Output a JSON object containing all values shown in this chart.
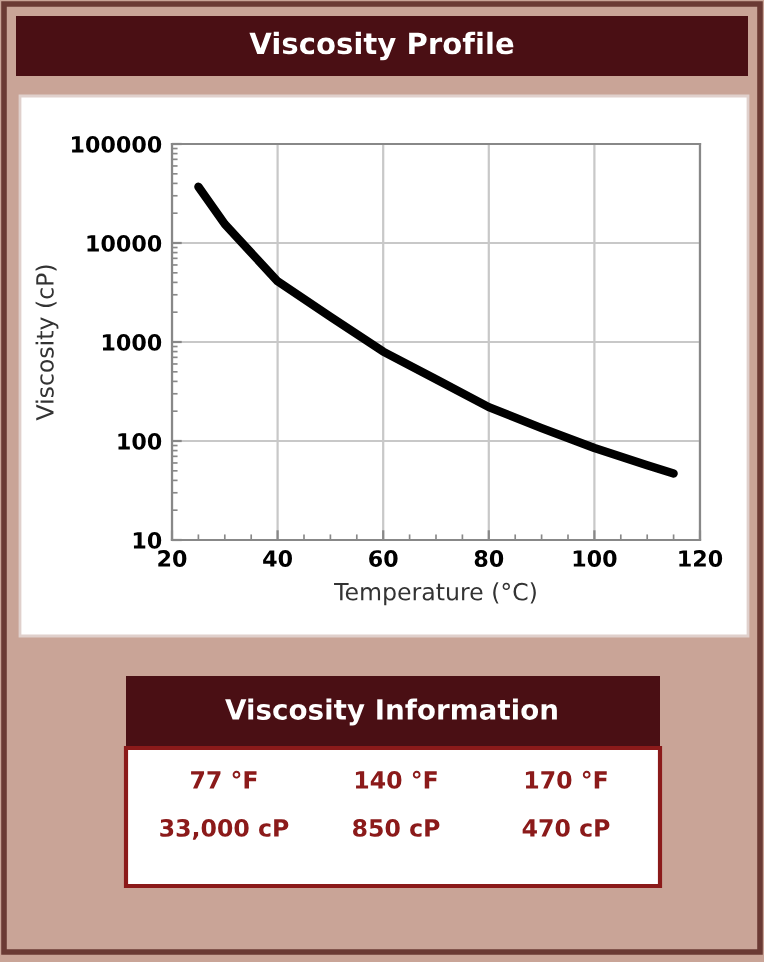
{
  "chart_data": [
    {
      "type": "line",
      "title": "Viscosity Profile",
      "xlabel": "Temperature (°C)",
      "ylabel": "Viscosity (cP)",
      "x": [
        25,
        30,
        40,
        50,
        60,
        70,
        80,
        90,
        100,
        110,
        115
      ],
      "series": [
        {
          "color": "#000000",
          "values": [
            37000,
            15500,
            4100,
            1800,
            800,
            420,
            220,
            135,
            85,
            57,
            47
          ]
        }
      ],
      "xlim": [
        20,
        120
      ],
      "xticks": [
        20,
        40,
        60,
        80,
        100,
        120
      ],
      "ylim": [
        10,
        100000
      ],
      "yticks": [
        10,
        100,
        1000,
        10000,
        100000
      ],
      "log": "y",
      "grid": true
    },
    {
      "type": "other",
      "title": "Viscosity Information",
      "annotations": [
        "77 °F",
        "140 °F",
        "170 °F",
        "33,000 cP",
        "850 cP",
        "470 cP"
      ]
    }
  ]
}
